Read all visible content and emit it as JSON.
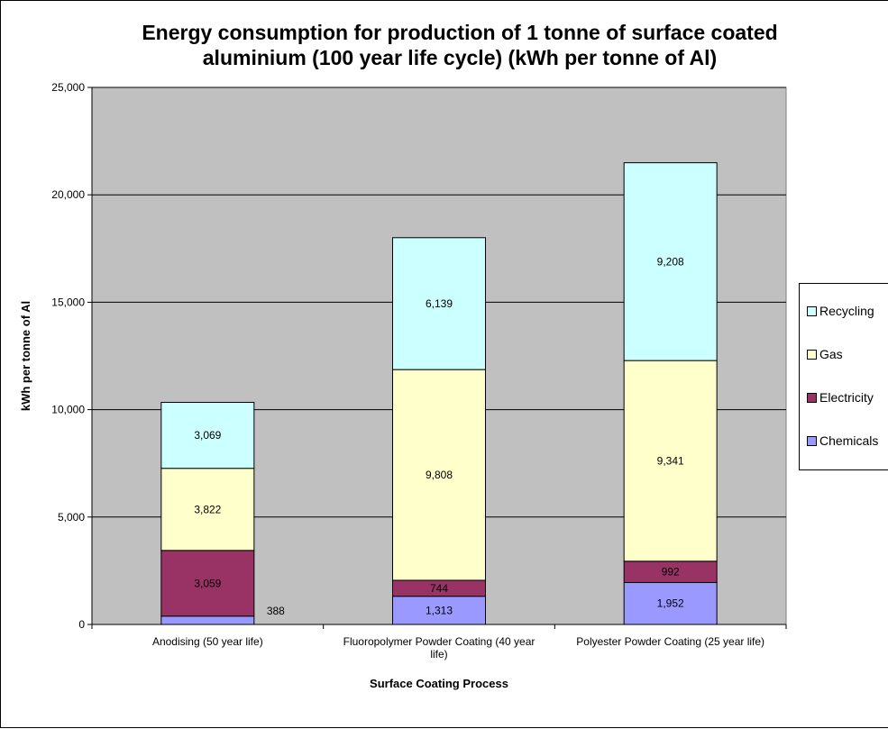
{
  "colors": {
    "Chemicals": "#9999ff",
    "Electricity": "#993366",
    "Gas": "#ffffcc",
    "Recycling": "#ccffff",
    "plot_bg": "#c0c0c0",
    "grid": "#000000"
  },
  "chart_data": {
    "type": "bar",
    "stacked": true,
    "title_lines": [
      "Energy consumption for production of 1 tonne of surface coated",
      "aluminium (100 year life cycle) (kWh per tonne of Al)"
    ],
    "xlabel": "Surface Coating Process",
    "ylabel": "kWh per tonne of Al",
    "ylim": [
      0,
      25000
    ],
    "yticks": [
      0,
      5000,
      10000,
      15000,
      20000,
      25000
    ],
    "ytick_labels": [
      "0",
      "5,000",
      "10,000",
      "15,000",
      "20,000",
      "25,000"
    ],
    "categories": [
      "Anodising  (50 year life)",
      "Fluoropolymer Powder Coating (40 year life)",
      "Polyester Powder Coating (25 year life)"
    ],
    "category_label_lines": [
      [
        "Anodising  (50 year life)"
      ],
      [
        "Fluoropolymer Powder Coating (40 year",
        "life)"
      ],
      [
        "Polyester Powder Coating (25 year life)"
      ]
    ],
    "series": [
      {
        "name": "Chemicals",
        "values": [
          388,
          1313,
          1952
        ],
        "labels": [
          "388",
          "1,313",
          "1,952"
        ]
      },
      {
        "name": "Electricity",
        "values": [
          3059,
          744,
          992
        ],
        "labels": [
          "3,059",
          "744",
          "992"
        ]
      },
      {
        "name": "Gas",
        "values": [
          3822,
          9808,
          9341
        ],
        "labels": [
          "3,822",
          "9,808",
          "9,341"
        ]
      },
      {
        "name": "Recycling",
        "values": [
          3069,
          6139,
          9208
        ],
        "labels": [
          "3,069",
          "6,139",
          "9,208"
        ]
      }
    ],
    "legend_order": [
      "Recycling",
      "Gas",
      "Electricity",
      "Chemicals"
    ],
    "legend_position": "right",
    "grid": true
  }
}
